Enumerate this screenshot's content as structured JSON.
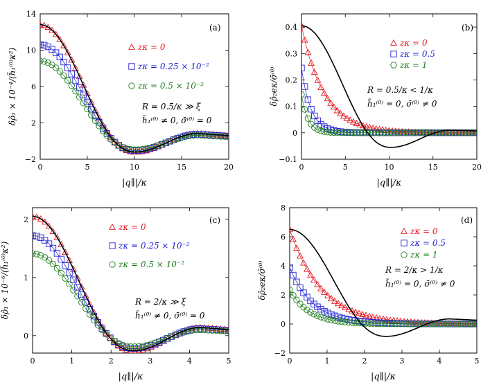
{
  "chart_data": [
    {
      "type": "scatter",
      "panel": "(a)",
      "xlabel": "|q∥|/κ",
      "ylabel": "δρ̂₁ × 10⁻⁴/(h̄₁⁽⁰⁾κ²)",
      "xlim": [
        0,
        20
      ],
      "ylim": [
        -2,
        14
      ],
      "xticks": [
        "0",
        "5",
        "10",
        "15",
        "20"
      ],
      "yticks": [
        "−2",
        "2",
        "6",
        "10",
        "14"
      ],
      "xtickvals": [
        0,
        5,
        10,
        15,
        20
      ],
      "ytickvals": [
        -2,
        2,
        6,
        10,
        14
      ],
      "annotations": [
        "R = 0.5/κ ≫ ξ",
        "h̄₁⁽⁰⁾ ≠ 0, σ̄⁽⁰⁾ = 0"
      ],
      "series": [
        {
          "name": "zκ = 0",
          "marker": "triangle",
          "color": "#e8141c",
          "peak": 12.8,
          "min": -1.2,
          "minx": 10.1,
          "amp2": 0.85,
          "scale": 8.8
        },
        {
          "name": "zκ = 0.25 × 10⁻²",
          "marker": "square",
          "color": "#1f1fd6",
          "peak": 10.6,
          "min": -1.05,
          "minx": 10.1,
          "amp2": 0.75,
          "scale": 8.8
        },
        {
          "name": "zκ = 0.5 × 10⁻²",
          "marker": "circle",
          "color": "#1a7d1a",
          "peak": 8.8,
          "min": -0.95,
          "minx": 10.1,
          "amp2": 0.65,
          "scale": 8.8
        }
      ],
      "theory": {
        "name": "theory",
        "color": "#000000",
        "peak": 12.8,
        "min": -1.2,
        "minx": 10.1,
        "amp2": 0.85,
        "scale": 8.8
      }
    },
    {
      "type": "scatter",
      "panel": "(b)",
      "xlabel": "|q∥|/κ",
      "ylabel": "δρ̂₂eκ/σ̄⁽⁰⁾",
      "xlim": [
        0,
        20
      ],
      "ylim": [
        -0.1,
        0.45
      ],
      "xticks": [
        "0",
        "5",
        "10",
        "15",
        "20"
      ],
      "yticks": [
        "−0.1",
        "0",
        "0.1",
        "0.2",
        "0.3",
        "0.4"
      ],
      "xtickvals": [
        0,
        5,
        10,
        15,
        20
      ],
      "ytickvals": [
        -0.1,
        0,
        0.1,
        0.2,
        0.3,
        0.4
      ],
      "annotations": [
        "R = 0.5/κ < 1/κ",
        "h̄₁⁽⁰⁾ = 0, σ̄⁽⁰⁾ ≠ 0"
      ],
      "series": [
        {
          "name": "zκ = 0",
          "marker": "triangle",
          "color": "#e8141c",
          "peak": 0.405,
          "decay": 2.6
        },
        {
          "name": "zκ = 0.5",
          "marker": "square",
          "color": "#1f1fd6",
          "peak": 0.245,
          "decay": 1.1
        },
        {
          "name": "zκ = 1",
          "marker": "circle",
          "color": "#1a7d1a",
          "peak": 0.145,
          "decay": 0.75
        }
      ],
      "theory": {
        "name": "theory",
        "color": "#000000",
        "peak": 0.405,
        "min": -0.055,
        "minx": 10.2,
        "amp2": 0.01,
        "scale": 8.8
      }
    },
    {
      "type": "scatter",
      "panel": "(c)",
      "xlabel": "|q∥|/κ",
      "ylabel": "δρ̂₁ × 10⁻⁶/(h̄₁⁽⁰⁾κ²)",
      "xlim": [
        0,
        5
      ],
      "ylim": [
        -0.3,
        2.2
      ],
      "xticks": [
        "0",
        "1",
        "2",
        "3",
        "4",
        "5"
      ],
      "yticks": [
        "0",
        "1",
        "2"
      ],
      "xtickvals": [
        0,
        1,
        2,
        3,
        4,
        5
      ],
      "ytickvals": [
        0,
        1,
        2
      ],
      "annotations": [
        "R = 2/κ ≫ ξ",
        "h̄₁⁽⁰⁾ ≠ 0, σ̄⁽⁰⁾ = 0"
      ],
      "series": [
        {
          "name": "zκ = 0",
          "marker": "triangle",
          "color": "#e8141c",
          "peak": 2.05,
          "min": -0.26,
          "minx": 2.58,
          "amp2": 0.14,
          "scale": 2.22
        },
        {
          "name": "zκ = 0.25 × 10⁻²",
          "marker": "square",
          "color": "#1f1fd6",
          "peak": 1.72,
          "min": -0.22,
          "minx": 2.58,
          "amp2": 0.12,
          "scale": 2.22
        },
        {
          "name": "zκ = 0.5 × 10⁻²",
          "marker": "circle",
          "color": "#1a7d1a",
          "peak": 1.41,
          "min": -0.19,
          "minx": 2.58,
          "amp2": 0.1,
          "scale": 2.22
        }
      ],
      "theory": {
        "name": "theory",
        "color": "#000000",
        "peak": 2.05,
        "min": -0.26,
        "minx": 2.58,
        "amp2": 0.14,
        "scale": 2.22
      }
    },
    {
      "type": "scatter",
      "panel": "(d)",
      "xlabel": "|q∥|/κ",
      "ylabel": "δρ̂₂eκ/σ̄⁽⁰⁾",
      "xlim": [
        0,
        5
      ],
      "ylim": [
        -2,
        8
      ],
      "xticks": [
        "0",
        "1",
        "2",
        "3",
        "4",
        "5"
      ],
      "yticks": [
        "−2",
        "0",
        "2",
        "4",
        "6",
        "8"
      ],
      "xtickvals": [
        0,
        1,
        2,
        3,
        4,
        5
      ],
      "ytickvals": [
        -2,
        0,
        2,
        4,
        6,
        8
      ],
      "annotations": [
        "R = 2/κ > 1/κ",
        "h̄₁⁽⁰⁾ = 0, σ̄⁽⁰⁾ ≠ 0"
      ],
      "series": [
        {
          "name": "zκ = 0",
          "marker": "triangle",
          "color": "#e8141c",
          "peak": 6.5,
          "decay": 0.85
        },
        {
          "name": "zκ = 0.5",
          "marker": "square",
          "color": "#1f1fd6",
          "peak": 3.9,
          "decay": 0.62
        },
        {
          "name": "zκ = 1",
          "marker": "circle",
          "color": "#1a7d1a",
          "peak": 2.35,
          "decay": 0.52
        }
      ],
      "theory": {
        "name": "theory",
        "color": "#000000",
        "peak": 6.5,
        "min": -0.85,
        "minx": 2.58,
        "amp2": 0.35,
        "scale": 2.22
      }
    }
  ]
}
